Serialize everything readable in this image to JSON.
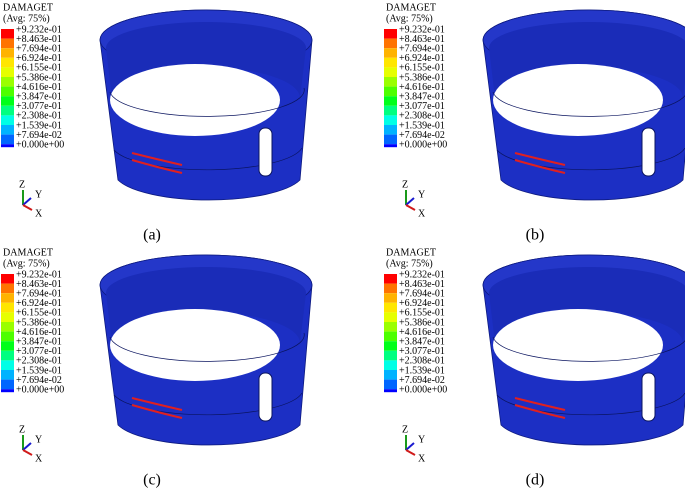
{
  "panels": [
    {
      "title": "DAMAGET",
      "subtitle": "(Avg: 75%)",
      "legend": [
        "+9.232e-01",
        "+8.463e-01",
        "+7.694e-01",
        "+6.924e-01",
        "+6.155e-01",
        "+5.386e-01",
        "+4.616e-01",
        "+3.847e-01",
        "+3.077e-01",
        "+2.308e-01",
        "+1.539e-01",
        "+7.694e-02",
        "+0.000e+00"
      ],
      "axes": [
        "Z",
        "Y",
        "X"
      ],
      "caption": "(a)"
    },
    {
      "title": "DAMAGET",
      "subtitle": "(Avg: 75%)",
      "legend": [
        "+9.232e-01",
        "+8.463e-01",
        "+7.694e-01",
        "+6.924e-01",
        "+6.155e-01",
        "+5.386e-01",
        "+4.616e-01",
        "+3.847e-01",
        "+3.077e-01",
        "+2.308e-01",
        "+1.539e-01",
        "+7.694e-02",
        "+0.000e+00"
      ],
      "axes": [
        "Z",
        "Y",
        "X"
      ],
      "caption": "(b)"
    },
    {
      "title": "DAMAGET",
      "subtitle": "(Avg: 75%)",
      "legend": [
        "+9.232e-01",
        "+8.463e-01",
        "+7.694e-01",
        "+6.924e-01",
        "+6.155e-01",
        "+5.386e-01",
        "+4.616e-01",
        "+3.847e-01",
        "+3.077e-01",
        "+2.308e-01",
        "+1.539e-01",
        "+7.694e-02",
        "+0.000e+00"
      ],
      "axes": [
        "Z",
        "Y",
        "X"
      ],
      "caption": "(c)"
    },
    {
      "title": "DAMAGET",
      "subtitle": "(Avg: 75%)",
      "legend": [
        "+9.232e-01",
        "+8.463e-01",
        "+7.694e-01",
        "+6.924e-01",
        "+6.155e-01",
        "+5.386e-01",
        "+4.616e-01",
        "+3.847e-01",
        "+3.077e-01",
        "+2.308e-01",
        "+1.539e-01",
        "+7.694e-02",
        "+0.000e+00"
      ],
      "axes": [
        "Z",
        "Y",
        "X"
      ],
      "caption": "(d)"
    }
  ]
}
